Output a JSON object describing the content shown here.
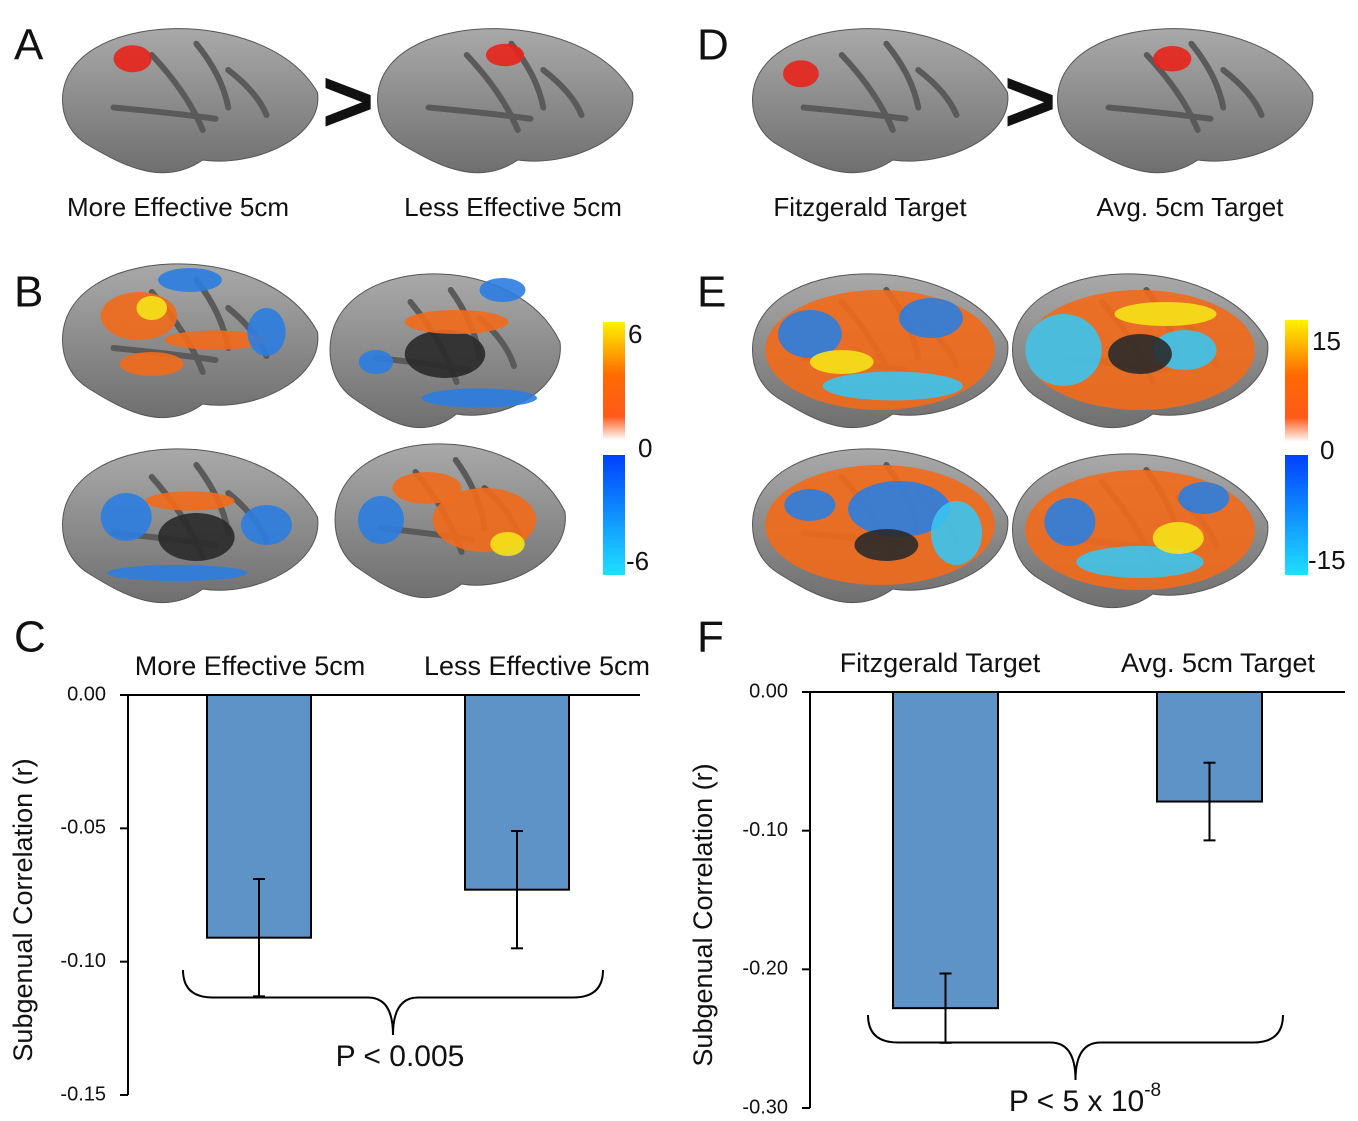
{
  "panels": {
    "a": "A",
    "b": "B",
    "c": "C",
    "d": "D",
    "e": "E",
    "f": "F"
  },
  "comparison": ">",
  "captions": {
    "a_left": "More Effective 5cm",
    "a_right": "Less Effective 5cm",
    "d_left": "Fitzgerald Target",
    "d_right": "Avg. 5cm Target"
  },
  "colorbars": [
    {
      "ticks": [
        6,
        0,
        -6
      ]
    },
    {
      "ticks": [
        15,
        0,
        -15
      ]
    }
  ],
  "chart_data": [
    {
      "type": "bar",
      "y_label": "Subgenual Correlation (r)",
      "categories": [
        "More Effective 5cm",
        "Less Effective 5cm"
      ],
      "values": [
        -0.091,
        -0.073
      ],
      "errors": [
        0.022,
        0.022
      ],
      "color": "#5e93c8",
      "ylim": [
        0,
        -0.15
      ],
      "yticks": [
        {
          "value": 0,
          "label": "0.00"
        },
        {
          "value": -0.05,
          "label": "-0.05"
        },
        {
          "value": -0.1,
          "label": "-0.10"
        },
        {
          "value": -0.15,
          "label": "-0.15"
        }
      ],
      "annotation": {
        "text": "P < 0.005"
      }
    },
    {
      "type": "bar",
      "y_label": "Subgenual Correlation (r)",
      "categories": [
        "Fitzgerald Target",
        "Avg. 5cm Target"
      ],
      "values": [
        -0.228,
        -0.079
      ],
      "errors": [
        0.025,
        0.028
      ],
      "color": "#5e93c8",
      "ylim": [
        0,
        -0.3
      ],
      "yticks": [
        {
          "value": 0,
          "label": "0.00"
        },
        {
          "value": -0.1,
          "label": "-0.10"
        },
        {
          "value": -0.2,
          "label": "-0.20"
        },
        {
          "value": -0.3,
          "label": "-0.30"
        }
      ],
      "annotation": {
        "text": "P < 5 x 10",
        "superscript": "-8"
      }
    }
  ]
}
